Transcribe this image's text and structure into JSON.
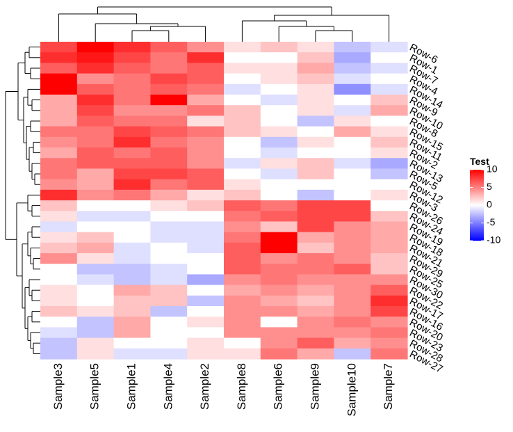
{
  "chart_data": {
    "type": "heatmap",
    "title": "",
    "columns": [
      "Sample3",
      "Sample5",
      "Sample1",
      "Sample4",
      "Sample2",
      "Sample8",
      "Sample6",
      "Sample9",
      "Sample10",
      "Sample7"
    ],
    "rows": [
      "Row-6",
      "Row-1",
      "Row-7",
      "Row-4",
      "Row-14",
      "Row-9",
      "Row-10",
      "Row-8",
      "Row-15",
      "Row-11",
      "Row-2",
      "Row-13",
      "Row-5",
      "Row-12",
      "Row-3",
      "Row-26",
      "Row-24",
      "Row-19",
      "Row-18",
      "Row-21",
      "Row-29",
      "Row-25",
      "Row-30",
      "Row-22",
      "Row-17",
      "Row-16",
      "Row-20",
      "Row-23",
      "Row-28",
      "Row-27"
    ],
    "values": [
      [
        7,
        10,
        8,
        6,
        4,
        1,
        2,
        1,
        -2,
        -1
      ],
      [
        8,
        9,
        7,
        5,
        8,
        0,
        0,
        2,
        -3,
        0
      ],
      [
        6,
        8,
        6,
        5,
        6,
        1,
        1,
        3,
        -2,
        -1
      ],
      [
        10,
        4,
        5,
        7,
        6,
        0,
        1,
        2,
        -1,
        0
      ],
      [
        10,
        6,
        5,
        6,
        5,
        -1,
        0,
        1,
        -4,
        -1
      ],
      [
        3,
        8,
        5,
        10,
        3,
        0,
        -1,
        1,
        0,
        2
      ],
      [
        3,
        7,
        4,
        4,
        5,
        2,
        0,
        1,
        -1,
        3
      ],
      [
        3,
        6,
        5,
        5,
        1,
        2,
        0,
        -2,
        1,
        0
      ],
      [
        5,
        5,
        7,
        6,
        5,
        2,
        1,
        0,
        3,
        1
      ],
      [
        4,
        5,
        8,
        5,
        4,
        0,
        -2,
        1,
        0,
        2
      ],
      [
        3,
        6,
        5,
        6,
        4,
        0,
        -1,
        0,
        0,
        1
      ],
      [
        5,
        6,
        6,
        6,
        4,
        -1,
        1,
        2,
        -1,
        -3
      ],
      [
        5,
        3,
        7,
        7,
        6,
        0,
        -1,
        2,
        0,
        -2
      ],
      [
        4,
        3,
        8,
        5,
        6,
        1,
        0,
        0,
        0,
        0
      ],
      [
        8,
        4,
        5,
        3,
        1,
        2,
        0,
        -2,
        0,
        1
      ],
      [
        2,
        0,
        0,
        1,
        2,
        6,
        5,
        7,
        7,
        0
      ],
      [
        1,
        -1,
        -1,
        0,
        0,
        5,
        6,
        7,
        7,
        2
      ],
      [
        -1,
        0,
        0,
        -1,
        -1,
        4,
        2,
        7,
        4,
        3
      ],
      [
        1,
        2,
        0,
        -1,
        -1,
        5,
        10,
        3,
        4,
        3
      ],
      [
        2,
        3,
        -1,
        0,
        -1,
        6,
        10,
        2,
        4,
        3
      ],
      [
        4,
        1,
        -1,
        0,
        0,
        6,
        4,
        5,
        4,
        2
      ],
      [
        0,
        -2,
        -2,
        -1,
        0,
        6,
        5,
        5,
        6,
        2
      ],
      [
        0,
        -1,
        -2,
        -1,
        -3,
        4,
        5,
        4,
        4,
        4
      ],
      [
        1,
        0,
        3,
        2,
        0,
        3,
        4,
        3,
        4,
        6
      ],
      [
        1,
        0,
        2,
        2,
        -2,
        4,
        3,
        2,
        4,
        8
      ],
      [
        2,
        1,
        2,
        -2,
        0,
        4,
        4,
        3,
        4,
        7
      ],
      [
        0,
        -2,
        3,
        0,
        1,
        4,
        0,
        4,
        5,
        4
      ],
      [
        -1,
        -2,
        3,
        0,
        0,
        4,
        4,
        4,
        4,
        5
      ],
      [
        -2,
        1,
        0,
        0,
        1,
        0,
        4,
        6,
        3,
        4
      ],
      [
        -2,
        1,
        -1,
        -1,
        1,
        1,
        5,
        3,
        -2,
        5
      ]
    ],
    "legend": {
      "title": "Test",
      "ticks": [
        10,
        5,
        0,
        -5,
        -10
      ],
      "range": [
        -10,
        10
      ],
      "colors": {
        "low": "#0000ff",
        "mid": "#ffffff",
        "high": "#ff0000"
      }
    },
    "dendrograms": {
      "rows": true,
      "columns": true,
      "row_side": "left",
      "column_side": "top"
    }
  }
}
